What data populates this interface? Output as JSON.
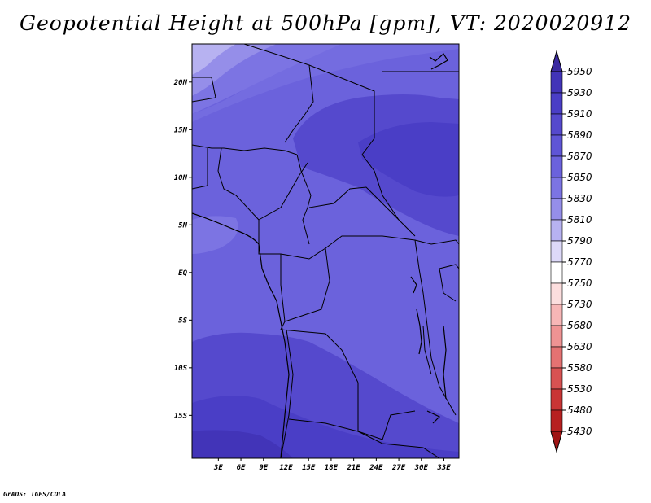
{
  "title": "Geopotential Height at 500hPa [gpm], VT: 2020020912",
  "credit": "GrADS: IGES/COLA",
  "map": {
    "lat_range": [
      -19.5,
      24
    ],
    "lon_range": [
      -0.5,
      35
    ],
    "y_ticks": [
      "20N",
      "15N",
      "10N",
      "5N",
      "EQ",
      "5S",
      "10S",
      "15S"
    ],
    "x_ticks": [
      "3E",
      "6E",
      "9E",
      "12E",
      "15E",
      "18E",
      "21E",
      "24E",
      "27E",
      "30E",
      "33E"
    ]
  },
  "colorbar": {
    "labels": [
      "5950",
      "5930",
      "5910",
      "5890",
      "5870",
      "5850",
      "5830",
      "5810",
      "5790",
      "5770",
      "5750",
      "5730",
      "5680",
      "5630",
      "5580",
      "5530",
      "5480",
      "5430"
    ],
    "colors": [
      "#3b2aa0",
      "#4234b8",
      "#4a3ec6",
      "#5549cd",
      "#5f55d6",
      "#6b62dc",
      "#7c74e3",
      "#958ee9",
      "#b7b2f1",
      "#ddd9f8",
      "#ffffff",
      "#fcdede",
      "#f7b6b6",
      "#ef9393",
      "#e47272",
      "#d85252",
      "#c93535",
      "#b72020",
      "#a01515"
    ]
  },
  "icons": {
    "colorbar_top": "triangle-up",
    "colorbar_bottom": "triangle-down"
  }
}
